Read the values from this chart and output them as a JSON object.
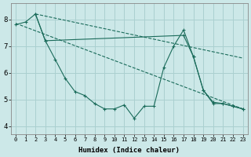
{
  "xlabel": "Humidex (Indice chaleur)",
  "background_color": "#cce8e8",
  "grid_color": "#aad0d0",
  "line_color": "#1a6b5a",
  "xlim": [
    -0.5,
    23.5
  ],
  "ylim": [
    3.7,
    8.6
  ],
  "yticks": [
    4,
    5,
    6,
    7,
    8
  ],
  "xticks": [
    0,
    1,
    2,
    3,
    4,
    5,
    6,
    7,
    8,
    9,
    10,
    11,
    12,
    13,
    14,
    15,
    16,
    17,
    18,
    19,
    20,
    21,
    22,
    23
  ],
  "series": [
    {
      "x": [
        0,
        1,
        2,
        3,
        4,
        5,
        6,
        7,
        8,
        9,
        10,
        11,
        12,
        13,
        14,
        15,
        16,
        17,
        18,
        19,
        20,
        21,
        22,
        23
      ],
      "y": [
        7.8,
        7.9,
        8.2,
        7.2,
        6.5,
        5.8,
        5.3,
        5.15,
        4.85,
        4.65,
        4.65,
        4.8,
        4.3,
        4.75,
        4.75,
        6.2,
        7.0,
        7.6,
        6.6,
        5.35,
        4.85,
        4.85,
        4.75,
        4.65
      ],
      "style": "-",
      "marker": "+"
    },
    {
      "x": [
        2,
        3,
        17,
        18,
        19,
        20,
        21,
        22,
        23
      ],
      "y": [
        8.2,
        7.2,
        7.4,
        6.6,
        5.35,
        4.9,
        4.85,
        4.75,
        4.65
      ],
      "style": "-",
      "marker": "+"
    },
    {
      "x": [
        2,
        23
      ],
      "y": [
        8.2,
        6.55
      ],
      "style": "--",
      "marker": null
    },
    {
      "x": [
        0,
        23
      ],
      "y": [
        7.85,
        4.65
      ],
      "style": "--",
      "marker": null
    }
  ]
}
